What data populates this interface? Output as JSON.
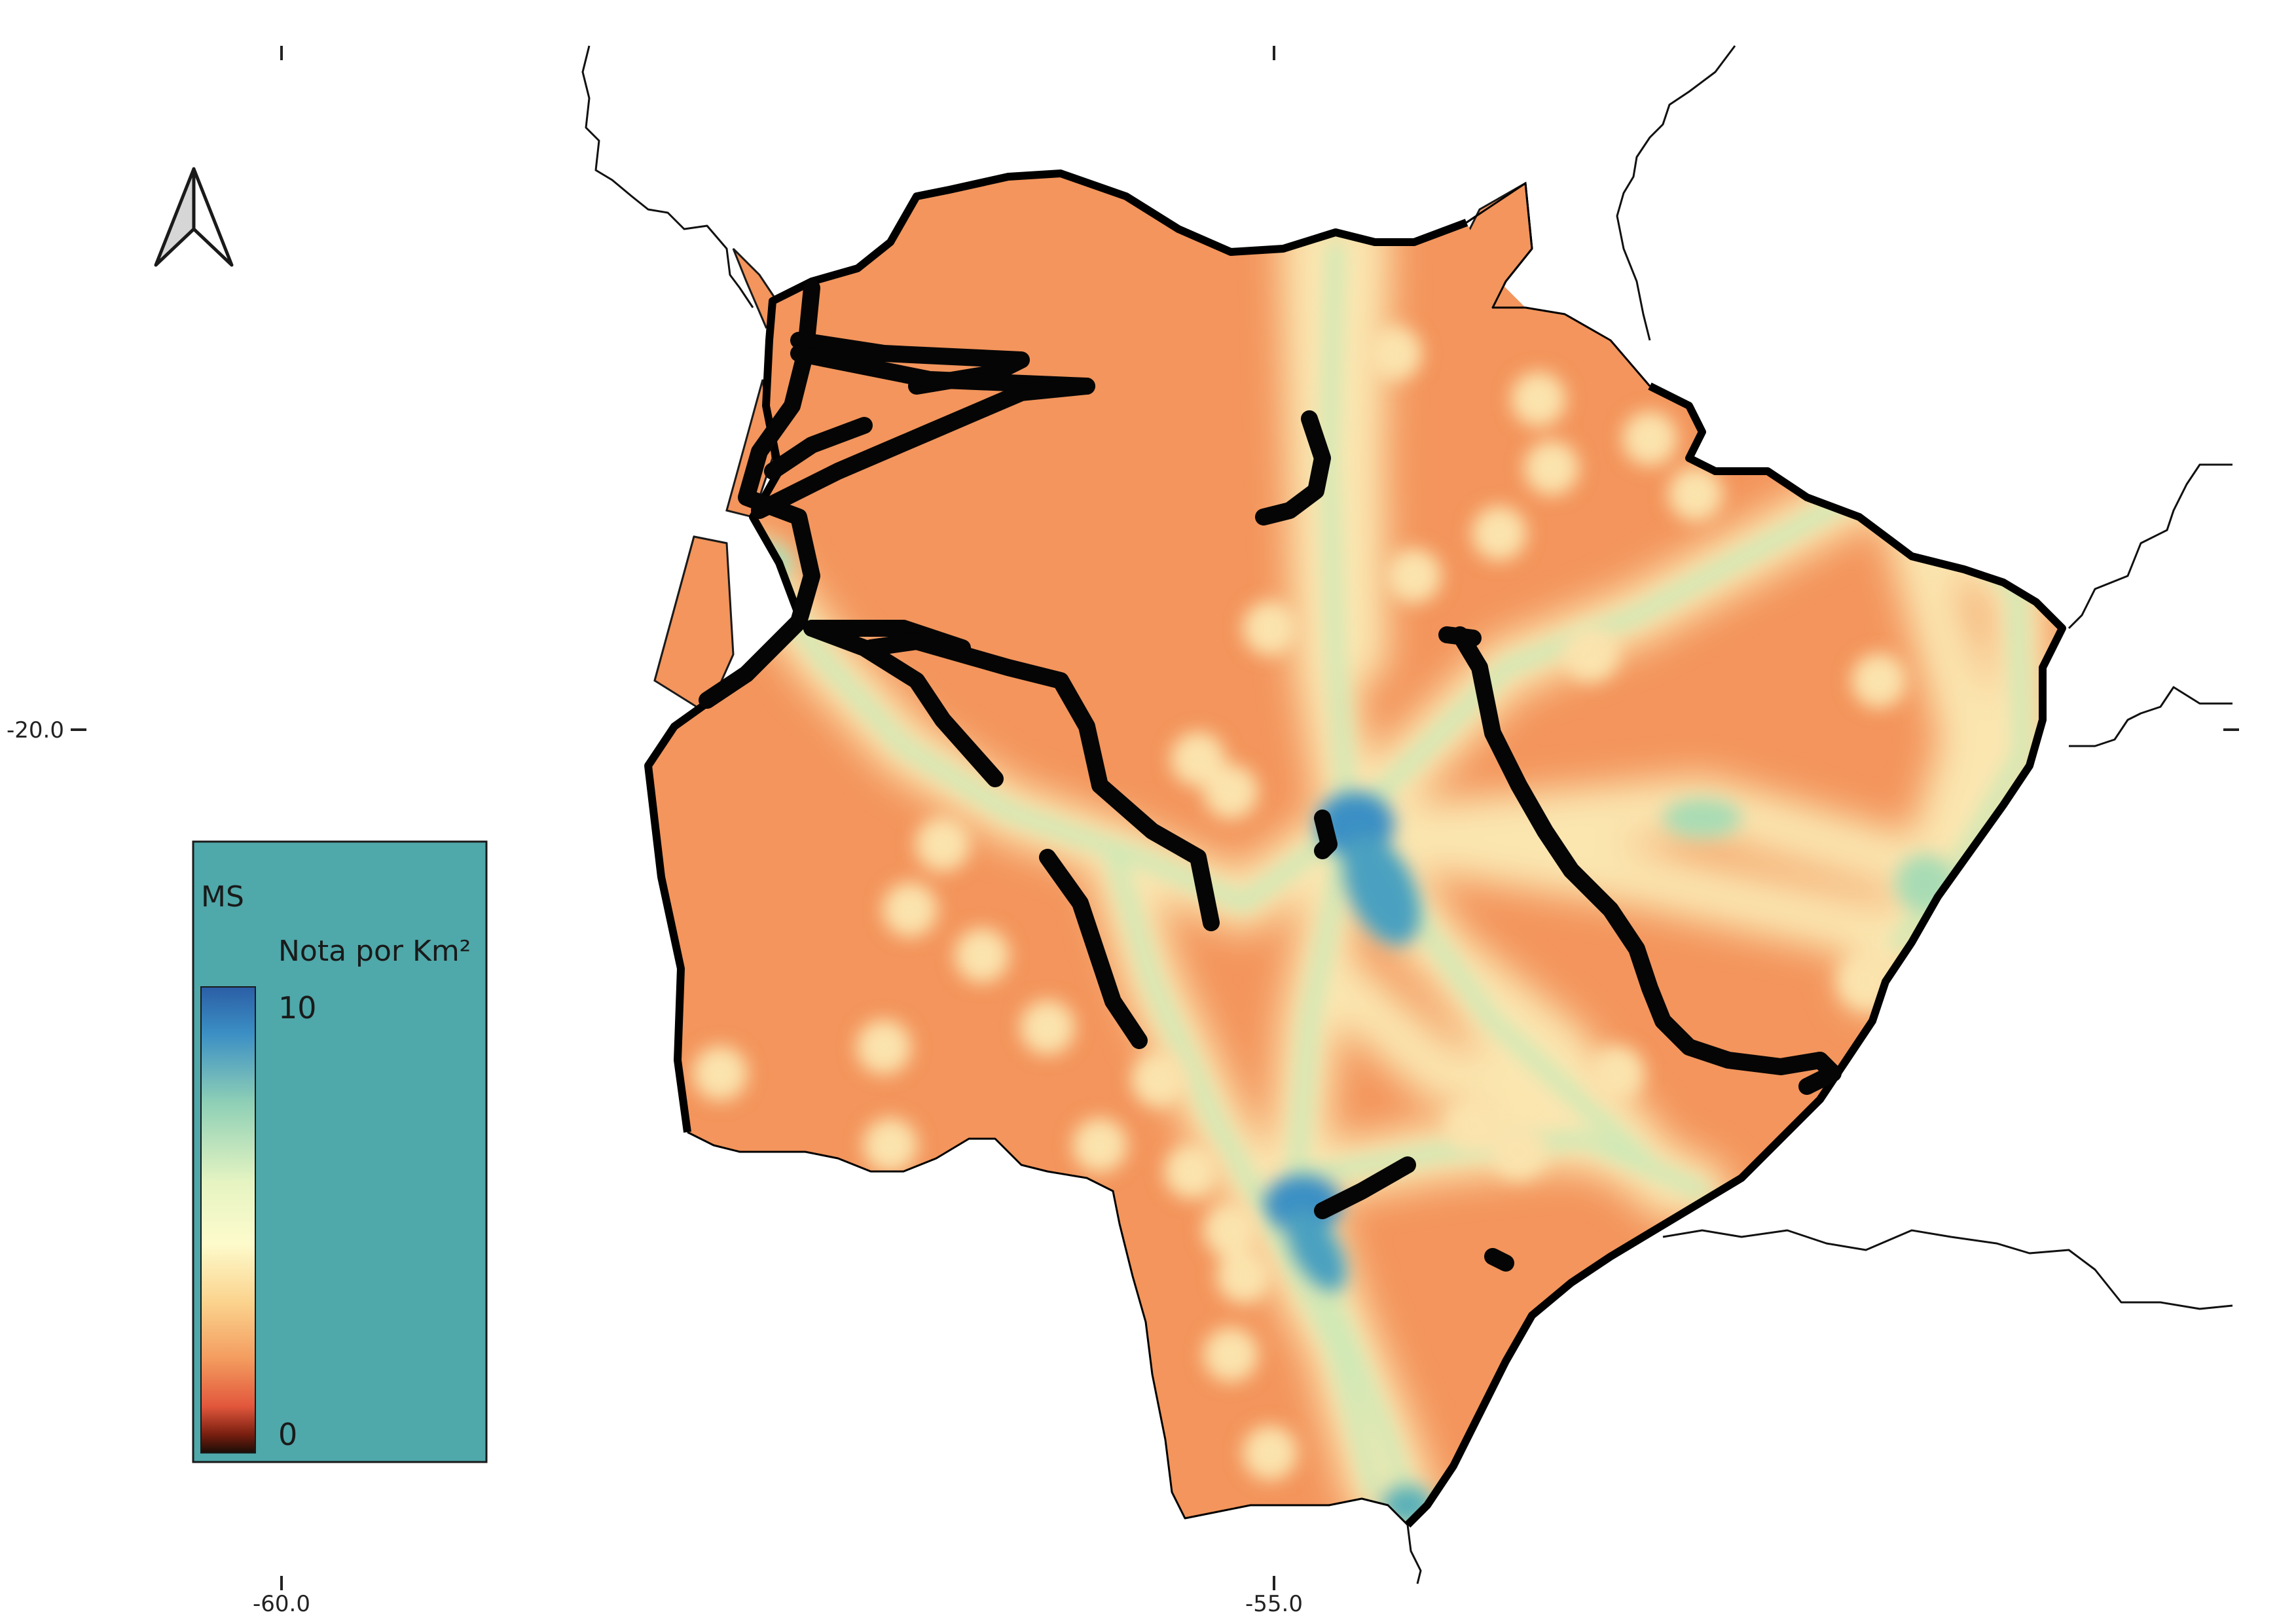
{
  "map": {
    "region": "MS",
    "axes": {
      "x_ticks": [
        "-60.0",
        "-55.0"
      ],
      "y_ticks": [
        "-20.0"
      ]
    }
  },
  "legend": {
    "title": "MS",
    "subtitle": "Nota por Km²",
    "max_label": "10",
    "min_label": "0",
    "background": "#4fa8aa",
    "ramp": [
      "#2b5ea6",
      "#3b8fc4",
      "#8fd0b6",
      "#e6f4c2",
      "#fdfbcc",
      "#fbd28c",
      "#f39b5e",
      "#e2573c",
      "#7a1f10",
      "#1a0d06"
    ]
  },
  "colors": {
    "base_fill": "#f3955c",
    "boundary": "#000000",
    "rivers": "#050505",
    "neighbor_lines": "#111111"
  },
  "icons": {
    "north_arrow": "north-arrow-icon"
  }
}
